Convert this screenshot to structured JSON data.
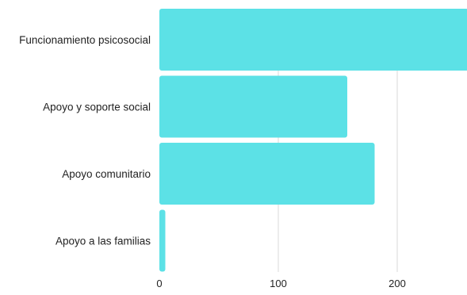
{
  "chart_data": {
    "type": "bar",
    "orientation": "horizontal",
    "categories": [
      "Funcionamiento psicosocial",
      "Apoyo y soporte social",
      "Apoyo comunitario",
      "Apoyo a las familias"
    ],
    "values": [
      260,
      158,
      181,
      5
    ],
    "title": "",
    "xlabel": "",
    "ylabel": "",
    "xlim": [
      0,
      260
    ],
    "x_ticks": [
      0,
      100,
      200
    ],
    "grid": "vertical",
    "legend": "none",
    "bar_color": "#5ce1e6",
    "grid_color": "#d9d9d9"
  }
}
